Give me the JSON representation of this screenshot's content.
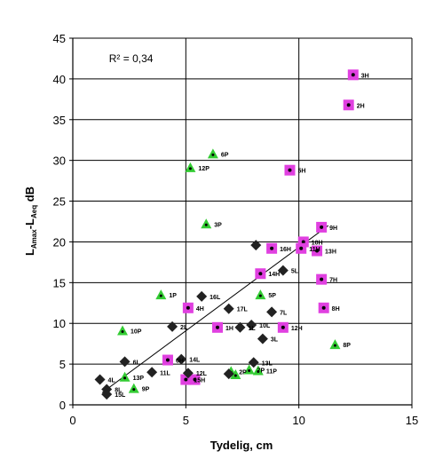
{
  "chart_data": {
    "type": "scatter",
    "xlabel": "Tydelig, cm",
    "ylabel": "LAmax-LAeq dB",
    "ylabel_parts": {
      "main": "L",
      "sub1": "Amax",
      "dash": "-L",
      "sub2": "Aeq",
      "unit": " dB"
    },
    "xlim": [
      0,
      15
    ],
    "ylim": [
      0,
      45
    ],
    "xticks": [
      0,
      5,
      10,
      15
    ],
    "yticks": [
      0,
      5,
      10,
      15,
      20,
      25,
      30,
      35,
      40,
      45
    ],
    "grid": true,
    "annotation": {
      "text": "R² = 0,34",
      "x": 1.6,
      "y": 42.5
    },
    "trendline": {
      "x": [
        1.3,
        11.3
      ],
      "y": [
        1.5,
        22.0
      ]
    },
    "colors": {
      "H": "#e040e0",
      "P": "#33cc33",
      "L": "#222222"
    },
    "series": [
      {
        "marker": "square",
        "points": [
          {
            "x": 12.4,
            "y": 40.5,
            "label": "3H"
          },
          {
            "x": 12.2,
            "y": 36.8,
            "label": "2H"
          },
          {
            "x": 9.6,
            "y": 28.8,
            "label": "5H"
          },
          {
            "x": 11.0,
            "y": 21.8,
            "label": "9H"
          },
          {
            "x": 10.2,
            "y": 20.0,
            "label": "10H"
          },
          {
            "x": 10.1,
            "y": 19.2,
            "label": "11H"
          },
          {
            "x": 8.8,
            "y": 19.2,
            "label": "16H"
          },
          {
            "x": 10.8,
            "y": 18.9,
            "label": "13H"
          },
          {
            "x": 8.3,
            "y": 16.1,
            "label": "14H"
          },
          {
            "x": 11.0,
            "y": 15.4,
            "label": "7H"
          },
          {
            "x": 5.1,
            "y": 11.9,
            "label": "4H"
          },
          {
            "x": 11.1,
            "y": 11.9,
            "label": "8H"
          },
          {
            "x": 6.4,
            "y": 9.5,
            "label": "1H"
          },
          {
            "x": 9.3,
            "y": 9.5,
            "label": "12H"
          },
          {
            "x": 4.2,
            "y": 5.5,
            "label": "6H"
          },
          {
            "x": 5.0,
            "y": 3.1,
            "label": "15H"
          },
          {
            "x": 5.4,
            "y": 3.1,
            "label": ""
          }
        ]
      },
      {
        "marker": "triangle",
        "points": [
          {
            "x": 6.2,
            "y": 30.8,
            "label": "6P"
          },
          {
            "x": 5.2,
            "y": 29.1,
            "label": "12P"
          },
          {
            "x": 5.9,
            "y": 22.2,
            "label": "3P"
          },
          {
            "x": 3.9,
            "y": 13.5,
            "label": "1P"
          },
          {
            "x": 8.3,
            "y": 13.5,
            "label": "5P"
          },
          {
            "x": 2.2,
            "y": 9.1,
            "label": "10P"
          },
          {
            "x": 11.6,
            "y": 7.4,
            "label": "8P"
          },
          {
            "x": 7.0,
            "y": 4.1,
            "label": "2P"
          },
          {
            "x": 7.2,
            "y": 3.7,
            "label": ""
          },
          {
            "x": 7.8,
            "y": 4.3,
            "label": "7P"
          },
          {
            "x": 8.2,
            "y": 4.2,
            "label": "11P"
          },
          {
            "x": 2.3,
            "y": 3.4,
            "label": "13P"
          },
          {
            "x": 2.7,
            "y": 2.0,
            "label": "9P"
          }
        ]
      },
      {
        "marker": "diamond",
        "points": [
          {
            "x": 8.1,
            "y": 19.6,
            "label": ""
          },
          {
            "x": 9.3,
            "y": 16.5,
            "label": "5L"
          },
          {
            "x": 5.7,
            "y": 13.3,
            "label": "16L"
          },
          {
            "x": 6.9,
            "y": 11.8,
            "label": "17L"
          },
          {
            "x": 8.8,
            "y": 11.4,
            "label": "7L"
          },
          {
            "x": 4.4,
            "y": 9.6,
            "label": "2L"
          },
          {
            "x": 7.4,
            "y": 9.5,
            "label": "1L"
          },
          {
            "x": 7.9,
            "y": 9.8,
            "label": "10L"
          },
          {
            "x": 8.4,
            "y": 8.1,
            "label": "3L"
          },
          {
            "x": 2.3,
            "y": 5.3,
            "label": "6L"
          },
          {
            "x": 4.8,
            "y": 5.6,
            "label": "14L"
          },
          {
            "x": 8.0,
            "y": 5.2,
            "label": "13L"
          },
          {
            "x": 3.5,
            "y": 4.0,
            "label": "11L"
          },
          {
            "x": 5.1,
            "y": 3.9,
            "label": "12L"
          },
          {
            "x": 6.9,
            "y": 3.8,
            "label": ""
          },
          {
            "x": 1.2,
            "y": 3.1,
            "label": "4L"
          },
          {
            "x": 1.5,
            "y": 1.9,
            "label": "8L"
          },
          {
            "x": 1.5,
            "y": 1.3,
            "label": "15L"
          }
        ]
      }
    ]
  }
}
